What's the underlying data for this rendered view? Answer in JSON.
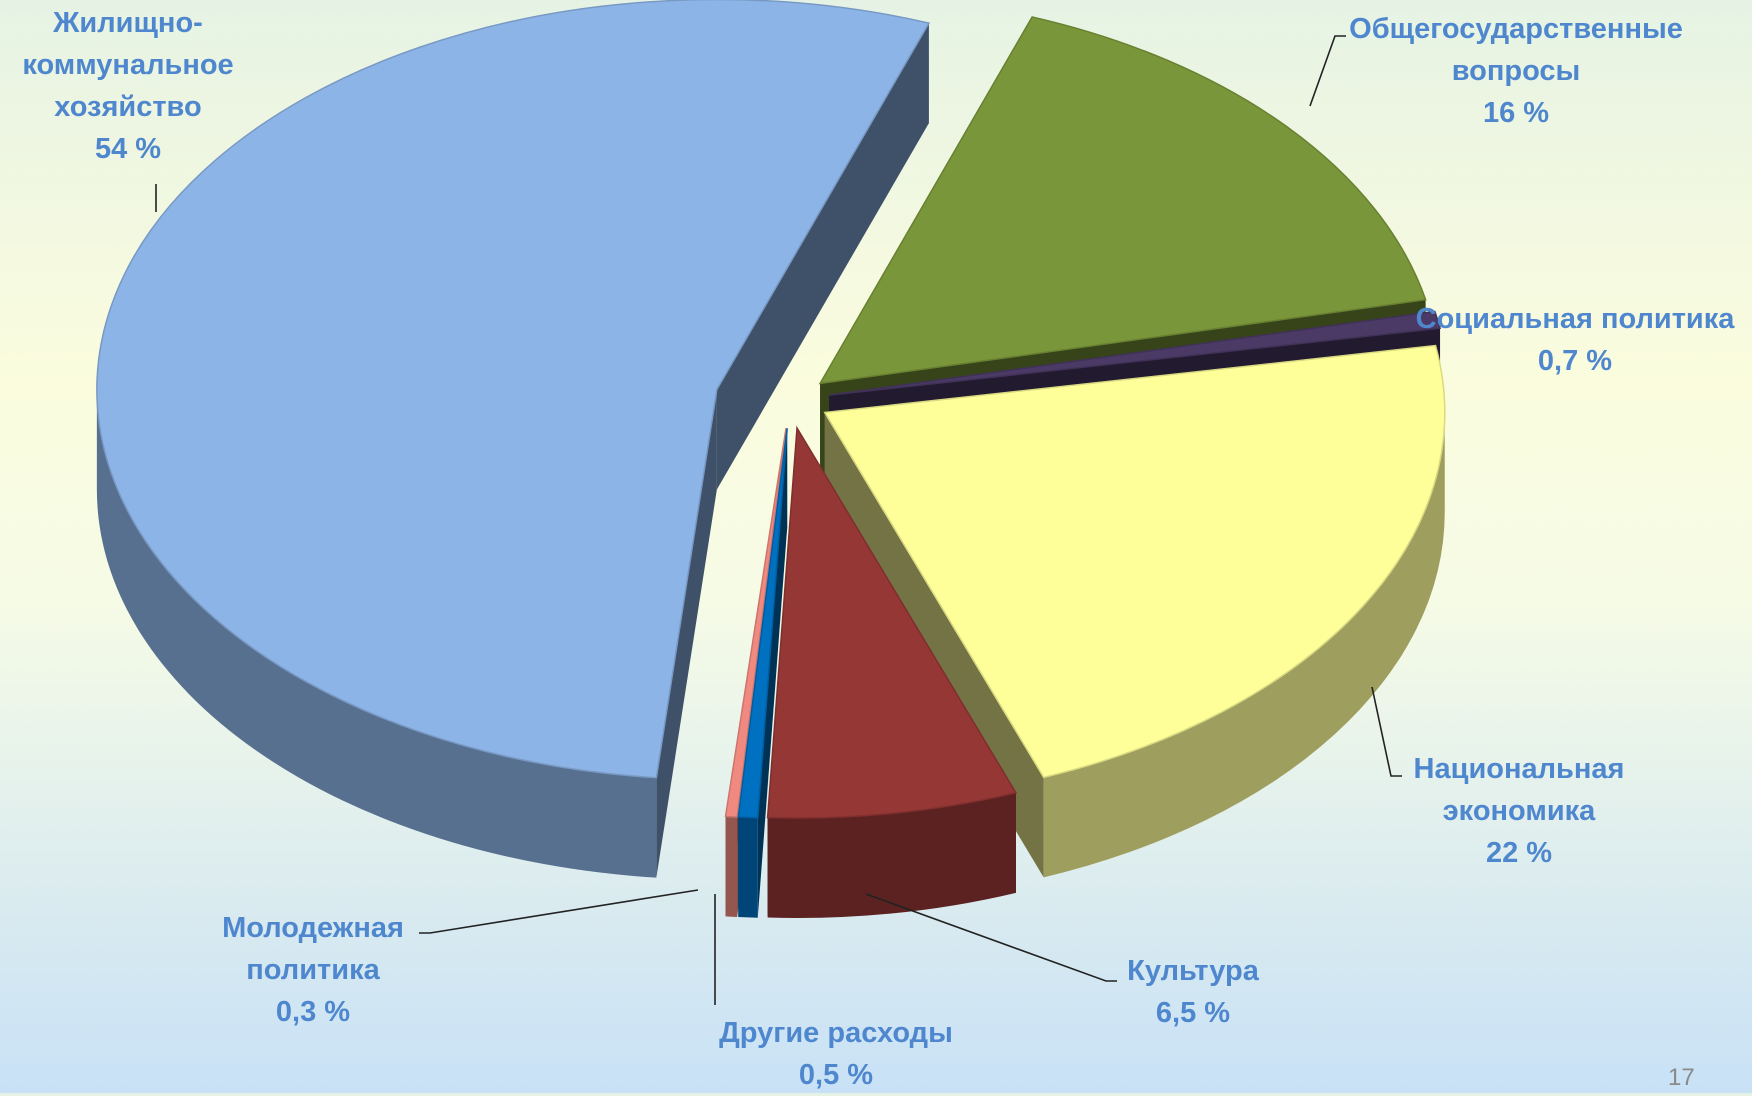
{
  "chart_data": {
    "type": "pie3d",
    "categories": [
      "Общегосударственные вопросы",
      "Социальная политика",
      "Национальная экономика",
      "Культура",
      "Другие расходы",
      "Молодежная политика",
      "Жилищно-коммунальное хозяйство"
    ],
    "values": [
      16,
      0.7,
      22,
      6.5,
      0.5,
      0.3,
      54
    ],
    "value_labels": [
      "16 %",
      "0,7 %",
      "22 %",
      "6,5 %",
      "0,5 %",
      "0,3 %",
      "54 %"
    ],
    "colors": [
      "#7a963a",
      "#4b3a66",
      "#ffff99",
      "#953735",
      "#0070c0",
      "#f08a80",
      "#8db4e6"
    ]
  },
  "page_number": "17"
}
